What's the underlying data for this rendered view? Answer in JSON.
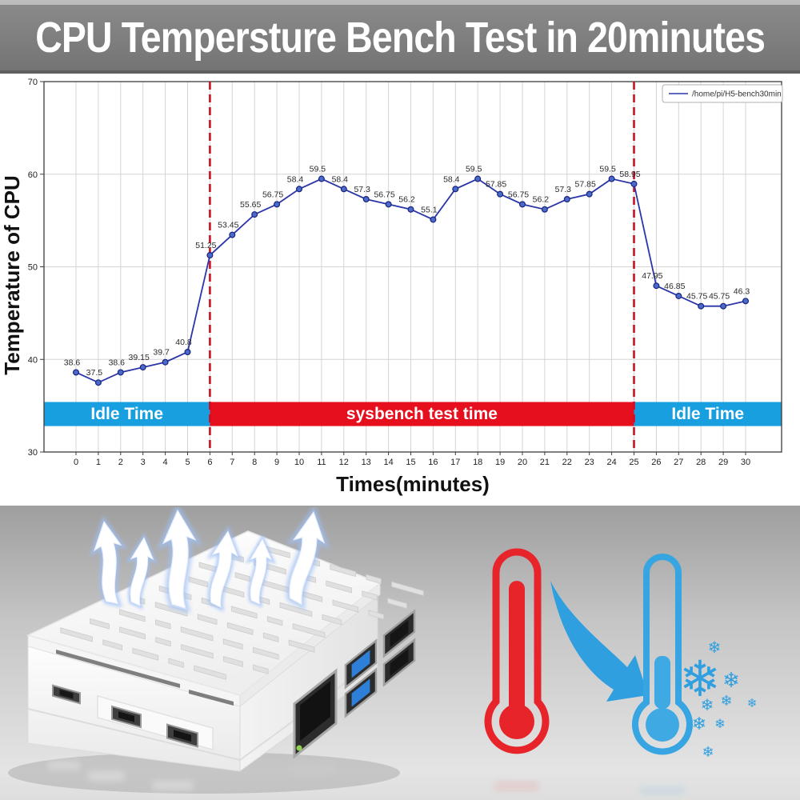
{
  "banner": {
    "title": "CPU Tempersture Bench Test in 20minutes",
    "bg_color": "#7d7d7d",
    "text_color": "#ffffff"
  },
  "chart_data": {
    "type": "line",
    "x": [
      0,
      1,
      2,
      3,
      4,
      5,
      6,
      7,
      8,
      9,
      10,
      11,
      12,
      13,
      14,
      15,
      16,
      17,
      18,
      19,
      20,
      21,
      22,
      23,
      24,
      25,
      26,
      27,
      28,
      29,
      30
    ],
    "series": [
      {
        "name": "/home/pi/H5-bench30min",
        "values": [
          38.6,
          37.5,
          38.6,
          39.15,
          39.7,
          40.8,
          51.25,
          53.45,
          55.65,
          56.75,
          58.4,
          59.5,
          58.4,
          57.3,
          56.75,
          56.2,
          55.1,
          58.4,
          59.5,
          57.85,
          56.75,
          56.2,
          57.3,
          57.85,
          59.5,
          58.95,
          47.95,
          46.85,
          45.75,
          45.75,
          46.3
        ],
        "line_color": "#2a35a8",
        "marker_fill": "#4a6bc9",
        "marker_edge": "#1a237e"
      }
    ],
    "title": "CPU Tempersture Bench Test in 20minutes",
    "xlabel": "Times(minutes)",
    "ylabel": "Temperature of CPU",
    "ylim": [
      30,
      70
    ],
    "yticks": [
      30,
      40,
      50,
      60,
      70
    ],
    "grid": true,
    "grid_color": "#d4d4d4",
    "legend_position": "upper-right",
    "point_labels_shown": true,
    "annotations": {
      "vlines": [
        {
          "x": 6,
          "color": "#cc1122",
          "style": "dashed"
        },
        {
          "x": 25,
          "color": "#cc1122",
          "style": "dashed"
        }
      ],
      "bands": [
        {
          "label": "Idle Time",
          "from_x": "plot-left",
          "to_x": 6,
          "color": "#189fe0",
          "text_color": "#ffffff"
        },
        {
          "label": "sysbench test time",
          "from_x": 6,
          "to_x": 25,
          "color": "#e60f1e",
          "text_color": "#ffffff"
        },
        {
          "label": "Idle Time",
          "from_x": 25,
          "to_x": "plot-right",
          "color": "#189fe0",
          "text_color": "#ffffff"
        }
      ],
      "band_y_range": [
        32.8,
        35.4
      ]
    }
  },
  "illustration": {
    "device": "white raspberry-pi vented case",
    "airflow_arrow_count": 6,
    "airflow_glow_color": "#9fc0f5",
    "ports": [
      "usb-c",
      "micro-hdmi",
      "micro-hdmi",
      "ethernet",
      "usb3",
      "usb3",
      "usb2",
      "usb2"
    ],
    "hot_thermometer_color": "#e8242b",
    "cold_thermometer_color": "#36a5e2",
    "cooling_arrow_color": "#2f9fe0",
    "snowflake_color": "#2f9fe0",
    "snowflake_glyph": "❄"
  }
}
